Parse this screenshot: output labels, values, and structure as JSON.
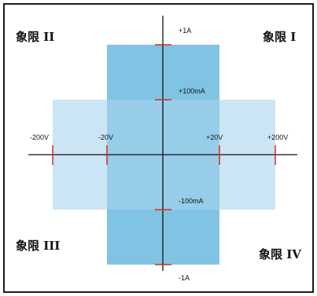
{
  "quadrants": {
    "q1": "象限 I",
    "q2": "象限 II",
    "q3": "象限 III",
    "q4": "象限 IV"
  },
  "axis_labels": {
    "current_top": "+1A",
    "current_upper": "+100mA",
    "current_lower": "-100mA",
    "current_bottom": "-1A",
    "voltage_far_left": "-200V",
    "voltage_near_left": "-20V",
    "voltage_near_right": "+20V",
    "voltage_far_right": "+200V"
  },
  "operating_regions": [
    {
      "voltage_range_V": [
        -20,
        20
      ],
      "current_range": [
        "-1A",
        "+1A"
      ],
      "color": "#6ab8de"
    },
    {
      "voltage_range_V": [
        -200,
        200
      ],
      "current_range": [
        "-100mA",
        "+100mA"
      ],
      "color": "#a8d4ee"
    }
  ],
  "colors": {
    "tick_marker": "#d92626",
    "axis": "#111111",
    "frame": "#1a1a1a"
  }
}
